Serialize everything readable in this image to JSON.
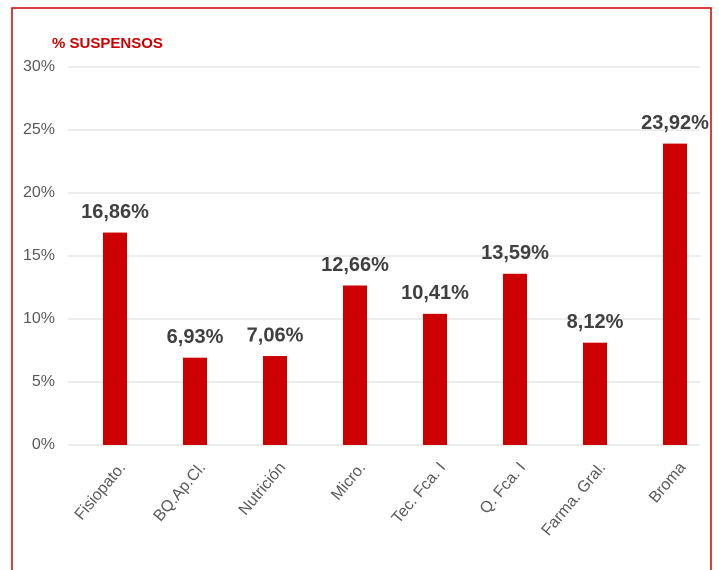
{
  "chart_data": {
    "type": "bar",
    "title": "% SUSPENSOS",
    "categories": [
      "Fisiopato.",
      "BQ.Ap.Cl.",
      "Nutrición",
      "Micro.",
      "Tec. Fca. I",
      "Q. Fca. I",
      "Farma. Gral.",
      "Broma"
    ],
    "values": [
      16.86,
      6.93,
      7.06,
      12.66,
      10.41,
      13.59,
      8.12,
      23.92
    ],
    "value_labels": [
      "16,86%",
      "6,93%",
      "7,06%",
      "12,66%",
      "10,41%",
      "13,59%",
      "8,12%",
      "23,92%"
    ],
    "color": "#cc0000",
    "ylim": [
      0,
      30
    ],
    "yticks": [
      {
        "value": 0,
        "label": "0%"
      },
      {
        "value": 5,
        "label": "5%"
      },
      {
        "value": 10,
        "label": "10%"
      },
      {
        "value": 15,
        "label": "15%"
      },
      {
        "value": 20,
        "label": "20%"
      },
      {
        "value": 25,
        "label": "25%"
      },
      {
        "value": 30,
        "label": "30%"
      }
    ],
    "grid": true
  }
}
